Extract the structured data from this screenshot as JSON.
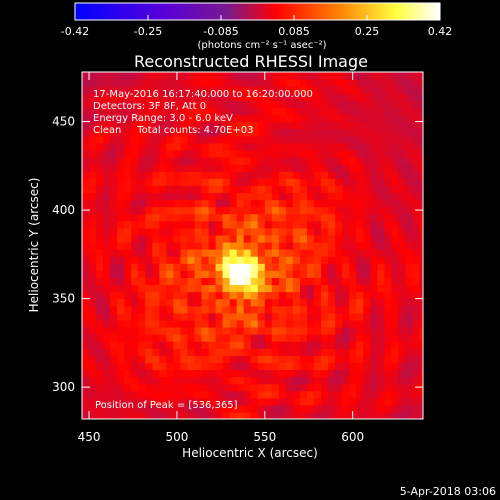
{
  "chart_data": {
    "type": "heatmap",
    "title": "Reconstructed RHESSI Image",
    "xlabel": "Heliocentric X (arcsec)",
    "ylabel": "Heliocentric Y (arcsec)",
    "xlim": [
      446,
      640
    ],
    "ylim": [
      282,
      478
    ],
    "x_ticks": [
      450,
      500,
      550,
      600
    ],
    "y_ticks": [
      300,
      350,
      400,
      450
    ],
    "colorbar": {
      "label": "(photons cm⁻² s⁻¹ asec⁻²)",
      "range": [
        -0.42,
        0.42
      ],
      "ticks": [
        "-0.42",
        "-0.25",
        "-0.085",
        "0.085",
        "0.25",
        "0.42"
      ],
      "colors": [
        "#0000ff",
        "#5a00d8",
        "#7a1a8c",
        "#ff0000",
        "#ff8000",
        "#ffff40",
        "#ffffff"
      ]
    },
    "peak": {
      "x": 536,
      "y": 365,
      "value": 0.42
    },
    "info_lines": [
      "17-May-2016 16:17:40.000 to 16:20:00.000",
      "Detectors: 3F 8F, Att 0",
      "Energy Range: 3.0 - 6.0 keV",
      "Clean     Total counts: 4.70E+03"
    ],
    "peak_label": "Position of Peak = [536,365]"
  },
  "footer": {
    "timestamp": "5-Apr-2018 03:06"
  }
}
